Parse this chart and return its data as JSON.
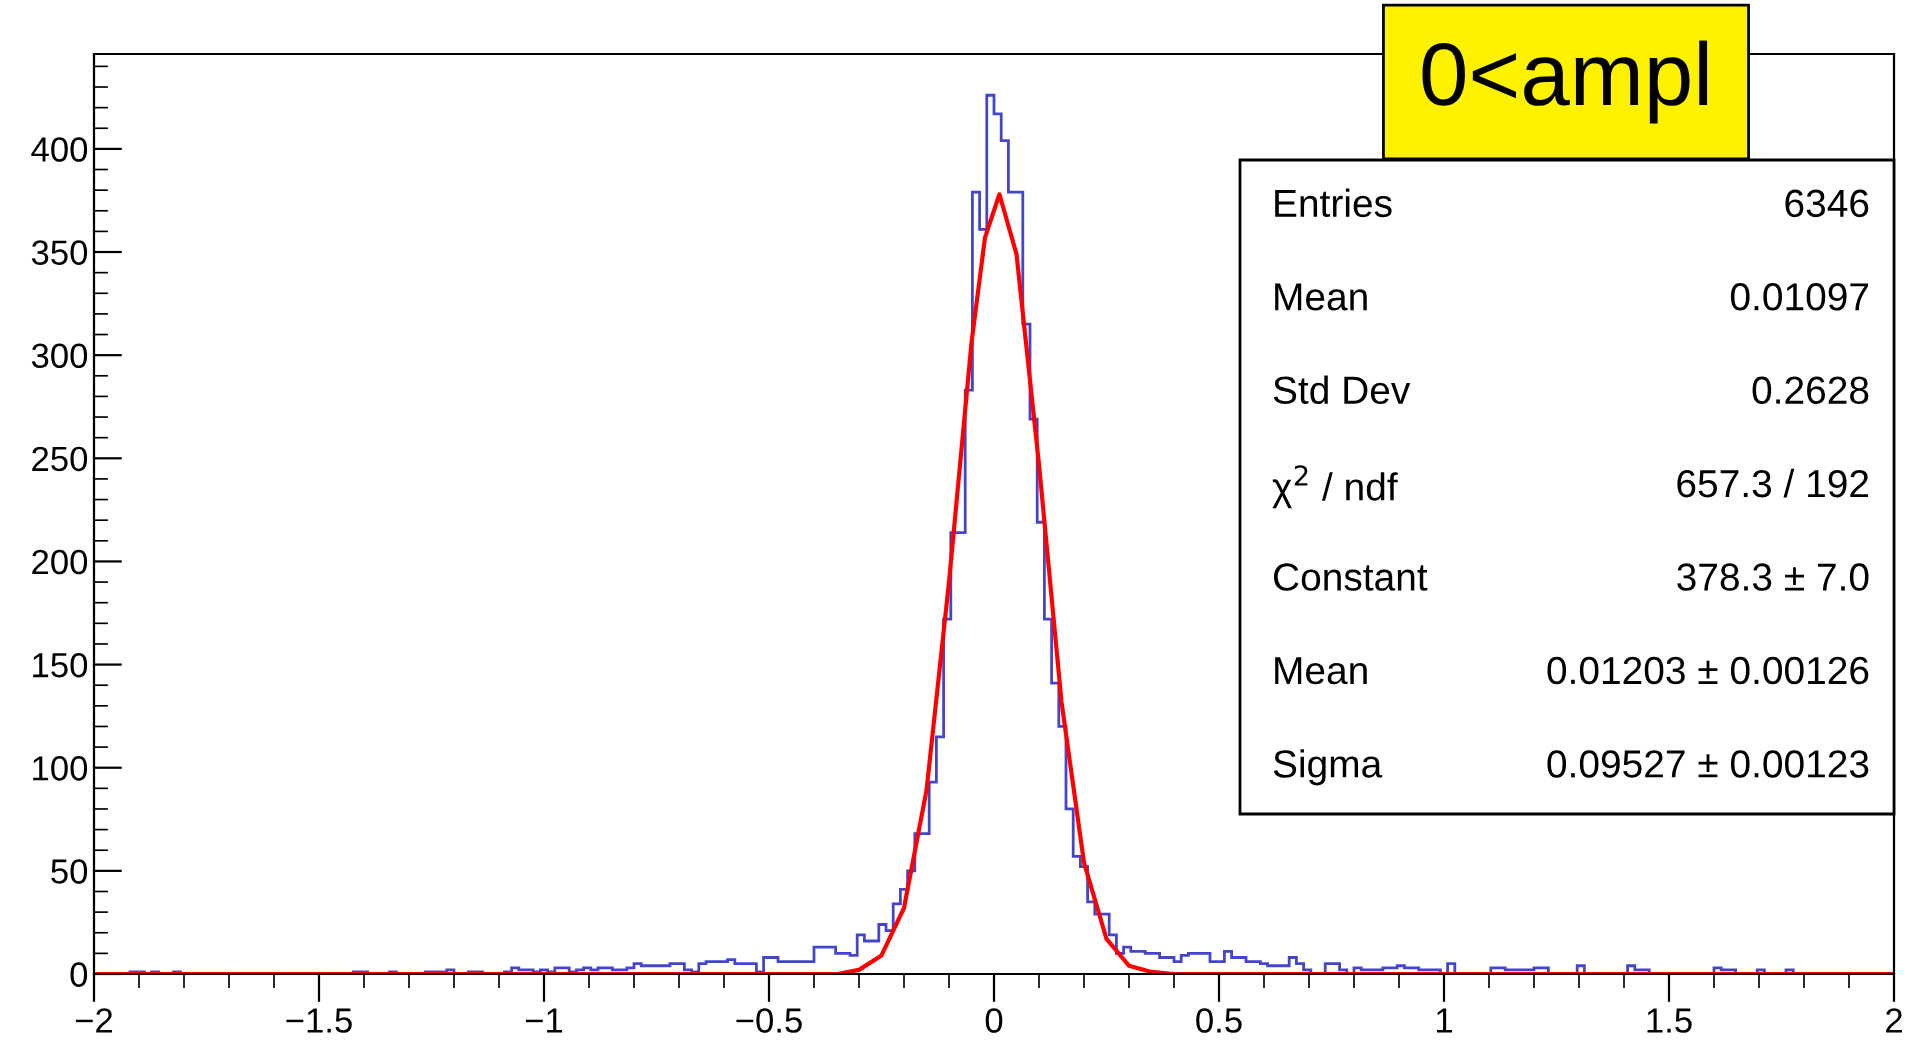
{
  "chart_data": {
    "type": "histogram",
    "title": "0<ampl",
    "bins": [
      -2,
      -1.984,
      -1.968,
      -1.952,
      -1.936,
      -1.92,
      -1.904,
      -1.888,
      -1.872,
      -1.856,
      -1.84,
      -1.824,
      -1.808,
      -1.792,
      -1.776,
      -1.76,
      -1.744,
      -1.728,
      -1.712,
      -1.696,
      -1.68,
      -1.664,
      -1.648,
      -1.632,
      -1.616,
      -1.6,
      -1.584,
      -1.568,
      -1.552,
      -1.536,
      -1.52,
      -1.504,
      -1.488,
      -1.472,
      -1.456,
      -1.44,
      -1.424,
      -1.408,
      -1.392,
      -1.376,
      -1.36,
      -1.344,
      -1.328,
      -1.312,
      -1.296,
      -1.28,
      -1.264,
      -1.248,
      -1.232,
      -1.216,
      -1.2,
      -1.184,
      -1.168,
      -1.152,
      -1.136,
      -1.12,
      -1.104,
      -1.088,
      -1.072,
      -1.056,
      -1.04,
      -1.024,
      -1.008,
      -0.992,
      -0.976,
      -0.96,
      -0.944,
      -0.928,
      -0.912,
      -0.896,
      -0.88,
      -0.864,
      -0.848,
      -0.832,
      -0.816,
      -0.8,
      -0.784,
      -0.768,
      -0.752,
      -0.736,
      -0.72,
      -0.704,
      -0.688,
      -0.672,
      -0.656,
      -0.64,
      -0.624,
      -0.608,
      -0.592,
      -0.576,
      -0.56,
      -0.544,
      -0.528,
      -0.512,
      -0.496,
      -0.48,
      -0.464,
      -0.448,
      -0.432,
      -0.416,
      -0.4,
      -0.384,
      -0.368,
      -0.352,
      -0.336,
      -0.32,
      -0.304,
      -0.288,
      -0.272,
      -0.256,
      -0.24,
      -0.224,
      -0.208,
      -0.192,
      -0.176,
      -0.16,
      -0.144,
      -0.128,
      -0.112,
      -0.096,
      -0.08,
      -0.064,
      -0.048,
      -0.032,
      -0.016,
      0,
      0.016,
      0.032,
      0.048,
      0.064,
      0.08,
      0.096,
      0.112,
      0.128,
      0.144,
      0.16,
      0.176,
      0.192,
      0.208,
      0.224,
      0.24,
      0.256,
      0.272,
      0.288,
      0.304,
      0.32,
      0.336,
      0.352,
      0.368,
      0.384,
      0.4,
      0.416,
      0.432,
      0.448,
      0.464,
      0.48,
      0.496,
      0.512,
      0.528,
      0.544,
      0.56,
      0.576,
      0.592,
      0.608,
      0.624,
      0.64,
      0.656,
      0.672,
      0.688,
      0.704,
      0.72,
      0.736,
      0.752,
      0.768,
      0.784,
      0.8,
      0.816,
      0.832,
      0.848,
      0.864,
      0.88,
      0.896,
      0.912,
      0.928,
      0.944,
      0.96,
      0.976,
      0.992,
      1.008,
      1.024,
      1.04,
      1.056,
      1.072,
      1.088,
      1.104,
      1.12,
      1.136,
      1.152,
      1.168,
      1.184,
      1.2,
      1.216,
      1.232,
      1.248,
      1.264,
      1.28,
      1.296,
      1.312,
      1.328,
      1.344,
      1.36,
      1.376,
      1.392,
      1.408,
      1.424,
      1.44,
      1.456,
      1.472,
      1.488,
      1.504,
      1.52,
      1.536,
      1.552,
      1.568,
      1.584,
      1.6,
      1.616,
      1.632,
      1.648,
      1.664,
      1.68,
      1.696,
      1.712,
      1.728,
      1.744,
      1.76,
      1.776,
      1.792,
      1.808,
      1.824,
      1.84,
      1.856,
      1.872,
      1.888,
      1.904,
      1.92,
      1.936,
      1.952,
      1.968,
      1.984,
      2
    ],
    "series": [
      {
        "color": "#4444cc",
        "values": [
          0,
          0,
          0,
          0,
          0,
          1,
          1,
          0,
          1,
          0,
          0,
          1,
          0,
          0,
          0,
          0,
          0,
          0,
          0,
          0,
          0,
          0,
          0,
          0,
          0,
          0,
          0,
          0,
          0,
          0,
          0,
          0,
          0,
          0,
          0,
          0,
          1,
          1,
          0,
          0,
          0,
          1,
          0,
          0,
          0,
          0,
          1,
          1,
          1,
          2,
          0,
          0,
          1,
          1,
          0,
          0,
          0,
          1,
          3,
          2,
          2,
          1,
          2,
          1,
          3,
          3,
          1,
          2,
          3,
          2,
          3,
          3,
          2,
          2,
          3,
          5,
          4,
          4,
          4,
          4,
          5,
          5,
          2,
          1,
          5,
          6,
          6,
          6,
          7,
          5,
          5,
          5,
          1,
          8,
          8,
          6,
          6,
          6,
          6,
          6,
          13,
          13,
          13,
          10,
          10,
          9,
          19,
          16,
          16,
          24,
          21,
          34,
          41,
          50,
          68,
          68,
          93,
          115,
          172,
          214,
          214,
          283,
          379,
          361,
          426,
          417,
          404,
          379,
          379,
          315,
          269,
          219,
          172,
          141,
          120,
          80,
          57,
          52,
          35,
          29,
          29,
          19,
          10,
          13,
          11,
          11,
          10,
          10,
          8,
          8,
          6,
          9,
          10,
          10,
          10,
          6,
          6,
          11,
          8,
          8,
          6,
          6,
          5,
          4,
          4,
          4,
          8,
          5,
          2,
          0,
          0,
          5,
          5,
          2,
          0,
          3,
          2,
          2,
          2,
          3,
          3,
          4,
          3,
          3,
          2,
          2,
          2,
          0,
          5,
          0,
          0,
          0,
          0,
          0,
          3,
          3,
          2,
          2,
          2,
          2,
          3,
          3,
          0,
          0,
          0,
          0,
          4,
          0,
          0,
          0,
          0,
          0,
          0,
          4,
          2,
          2,
          0,
          0,
          0,
          0,
          0,
          0,
          0,
          0,
          0,
          3,
          2,
          2,
          0,
          0,
          0,
          2,
          0,
          0,
          0,
          2,
          0,
          0,
          0,
          0,
          0,
          0,
          0,
          0,
          0,
          0,
          0,
          0,
          0,
          0
        ]
      },
      {
        "type": "line",
        "color": "#ff0000",
        "x": [
          -2,
          -0.348,
          -0.3,
          -0.25,
          -0.2,
          -0.15,
          -0.1,
          -0.05,
          -0.02,
          0.012,
          0.05,
          0.1,
          0.15,
          0.2,
          0.25,
          0.3,
          0.35,
          0.4,
          2
        ],
        "values": [
          0,
          0,
          2,
          9,
          32,
          89,
          190,
          306,
          357,
          378,
          349,
          247,
          132,
          54,
          17,
          4,
          1,
          0,
          0
        ]
      }
    ],
    "xlim": [
      -2,
      2
    ],
    "xticks": [
      {
        "value": -2,
        "label": "−2"
      },
      {
        "value": -1.5,
        "label": "−1.5"
      },
      {
        "value": -1,
        "label": "−1"
      },
      {
        "value": -0.5,
        "label": "−0.5"
      },
      0,
      0.5,
      1,
      1.5,
      2
    ],
    "ylim": [
      0,
      446
    ],
    "yticks": [
      0,
      50,
      100,
      150,
      200,
      250,
      300,
      350,
      400
    ],
    "grid": false,
    "annotations": [
      "Entries",
      "6346",
      "Mean",
      "0.01097",
      "Std Dev",
      "0.2628",
      "χ$^{2}$ / ndf",
      "657.3 / 192",
      "Constant",
      "378.3 ± 7.0",
      "Mean",
      "0.01203 ± 0.00126",
      "Sigma",
      "0.09527 ± 0.00123"
    ]
  }
}
